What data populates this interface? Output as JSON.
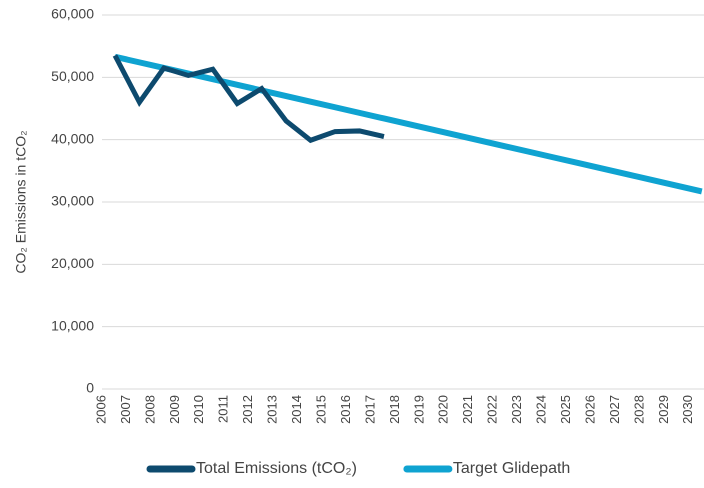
{
  "chart_data": {
    "type": "line",
    "y_label": "CO₂ Emissions in tCO₂",
    "categories": [
      "2006",
      "2007",
      "2008",
      "2009",
      "2010",
      "2011",
      "2012",
      "2013",
      "2014",
      "2015",
      "2016",
      "2017",
      "2018",
      "2019",
      "2020",
      "2021",
      "2022",
      "2023",
      "2024",
      "2025",
      "2026",
      "2027",
      "2028",
      "2029",
      "2030"
    ],
    "series": [
      {
        "name": "Total Emissions (tCO₂)",
        "color": "#0d4a6e",
        "values": [
          53500,
          46000,
          51500,
          50300,
          51300,
          45800,
          48200,
          43000,
          39900,
          41300,
          41400,
          40500,
          null,
          null,
          null,
          null,
          null,
          null,
          null,
          null,
          null,
          null,
          null,
          null,
          null
        ]
      },
      {
        "name": "Target Glidepath",
        "color": "#0fa3d1",
        "values": [
          53300,
          52400,
          51500,
          50600,
          49700,
          48800,
          47900,
          47000,
          46100,
          45200,
          44300,
          43400,
          42500,
          41600,
          40700,
          39800,
          38900,
          38000,
          37100,
          36200,
          35300,
          34400,
          33500,
          32600,
          31700
        ]
      }
    ],
    "ylim": [
      0,
      60000
    ],
    "yticks": [
      0,
      {
        "value": 10000,
        "label": "10,000"
      },
      {
        "value": 20000,
        "label": "20,000"
      },
      {
        "value": 30000,
        "label": "30,000"
      },
      {
        "value": 40000,
        "label": "40,000"
      },
      {
        "value": 50000,
        "label": "50,000"
      },
      {
        "value": 60000,
        "label": "60,000"
      }
    ],
    "grid": true,
    "legend": "bottom"
  }
}
